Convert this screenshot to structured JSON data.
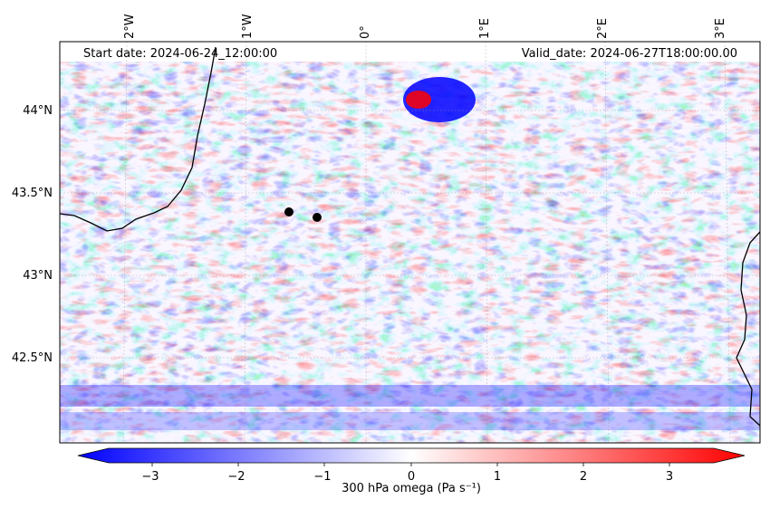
{
  "header": {
    "start_date": "Start date: 2024-06-24_12:00:00",
    "valid_date": "Valid_date: 2024-06-27T18:00:00.00"
  },
  "map": {
    "longitude_labels": [
      "2°W",
      "1°W",
      "0°",
      "1°E",
      "2°E",
      "3°E"
    ],
    "latitude_labels": [
      "44°N",
      "43.5°N",
      "43°N",
      "42.5°N"
    ],
    "points_of_interest_count": 2
  },
  "colorbar": {
    "label": "300 hPa omega (Pa s⁻¹)",
    "ticks": [
      "−3",
      "−2",
      "−1",
      "0",
      "1",
      "2",
      "3"
    ],
    "colormap": "bwr",
    "range": [
      -3.5,
      3.5
    ],
    "extend": "both",
    "colors": {
      "negative": "#0000ff",
      "zero": "#ffffff",
      "positive": "#ff0000"
    }
  }
}
